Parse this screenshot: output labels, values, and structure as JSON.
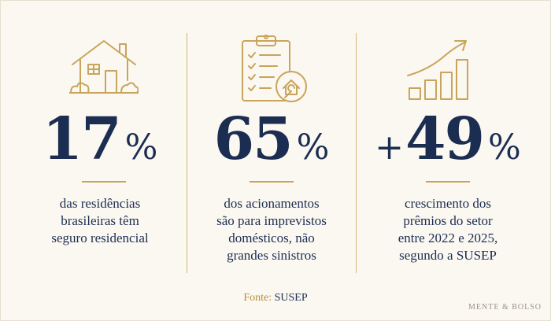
{
  "colors": {
    "navy": "#1c2d52",
    "gold": "#c9a45c",
    "background": "#fbf8f1"
  },
  "stats": [
    {
      "icon": "house-icon",
      "prefix": "",
      "number": "17",
      "unit": "%",
      "lines": [
        "das  residências",
        "brasileiras têm",
        "seguro residencial"
      ]
    },
    {
      "icon": "clipboard-checklist-wrench-icon",
      "prefix": "",
      "number": "65",
      "unit": "%",
      "lines": [
        "dos acionamentos",
        "são para imprevistos",
        "domésticos, não",
        "grandes sinistros"
      ]
    },
    {
      "icon": "growth-chart-icon",
      "prefix": "+",
      "number": "49",
      "unit": "%",
      "lines": [
        "crescimento dos",
        "prêmios do setor",
        "entre 2022 e 2025,",
        "segundo a SUSEP"
      ]
    }
  ],
  "footer": {
    "label": "Fonte:",
    "value": "SUSEP"
  },
  "brand": "MENTE & BOLSO"
}
